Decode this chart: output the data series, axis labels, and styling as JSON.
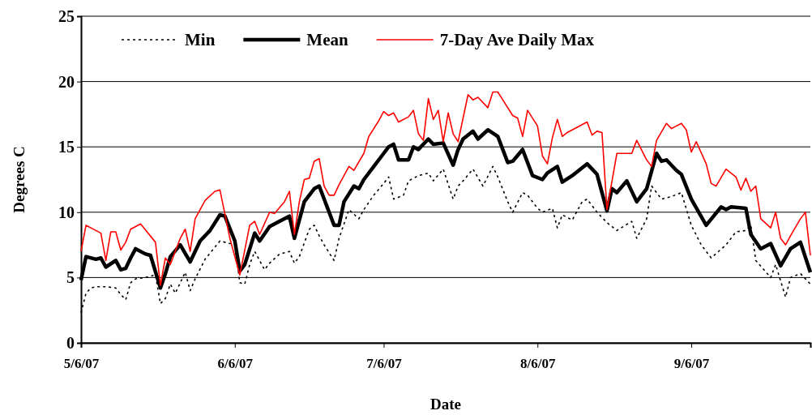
{
  "chart_data": {
    "type": "line",
    "xlabel": "Date",
    "ylabel": "Degrees C",
    "xlim": [
      "2007-05-06",
      "2007-09-30"
    ],
    "xticks": [
      {
        "value": "2007-05-06",
        "label": "5/6/07"
      },
      {
        "value": "2007-06-06",
        "label": "6/6/07"
      },
      {
        "value": "2007-07-06",
        "label": "7/6/07"
      },
      {
        "value": "2007-08-06",
        "label": "8/6/07"
      },
      {
        "value": "2007-09-06",
        "label": "9/6/07"
      }
    ],
    "ylim": [
      0,
      25
    ],
    "yticks": [
      0,
      5,
      10,
      15,
      20,
      25
    ],
    "grid": "y",
    "legend": "top",
    "marker": "none",
    "series": [
      {
        "name": "Min",
        "color": "#000000",
        "line_style": "dotted",
        "x": [
          "2007-05-06",
          "2007-05-07",
          "2007-05-08",
          "2007-05-09",
          "2007-05-11",
          "2007-05-13",
          "2007-05-14",
          "2007-05-15",
          "2007-05-16",
          "2007-05-17",
          "2007-05-19",
          "2007-05-21",
          "2007-05-22",
          "2007-05-23",
          "2007-05-24",
          "2007-05-25",
          "2007-05-27",
          "2007-05-28",
          "2007-05-29",
          "2007-05-31",
          "2007-06-03",
          "2007-06-05",
          "2007-06-06",
          "2007-06-07",
          "2007-06-08",
          "2007-06-09",
          "2007-06-10",
          "2007-06-12",
          "2007-06-13",
          "2007-06-15",
          "2007-06-17",
          "2007-06-18",
          "2007-06-19",
          "2007-06-21",
          "2007-06-22",
          "2007-06-23",
          "2007-06-24",
          "2007-06-26",
          "2007-06-27",
          "2007-06-29",
          "2007-07-01",
          "2007-07-02",
          "2007-07-04",
          "2007-07-06",
          "2007-07-07",
          "2007-07-08",
          "2007-07-10",
          "2007-07-11",
          "2007-07-13",
          "2007-07-15",
          "2007-07-16",
          "2007-07-18",
          "2007-07-20",
          "2007-07-21",
          "2007-07-22",
          "2007-07-24",
          "2007-07-26",
          "2007-07-28",
          "2007-07-29",
          "2007-07-31",
          "2007-08-01",
          "2007-08-03",
          "2007-08-04",
          "2007-08-06",
          "2007-08-07",
          "2007-08-09",
          "2007-08-10",
          "2007-08-11",
          "2007-08-13",
          "2007-08-15",
          "2007-08-16",
          "2007-08-18",
          "2007-08-20",
          "2007-08-22",
          "2007-08-25",
          "2007-08-26",
          "2007-08-28",
          "2007-08-29",
          "2007-08-31",
          "2007-09-02",
          "2007-09-04",
          "2007-09-06",
          "2007-09-08",
          "2007-09-10",
          "2007-09-13",
          "2007-09-15",
          "2007-09-17",
          "2007-09-18",
          "2007-09-19",
          "2007-09-22",
          "2007-09-23",
          "2007-09-25",
          "2007-09-26",
          "2007-09-28",
          "2007-09-30"
        ],
        "values": [
          2.3,
          3.8,
          4.2,
          4.3,
          4.3,
          4.2,
          3.7,
          3.3,
          4.6,
          4.9,
          5.0,
          5.2,
          3.0,
          3.4,
          4.5,
          3.8,
          5.4,
          4.0,
          4.9,
          6.4,
          7.8,
          7.6,
          7.6,
          4.6,
          4.5,
          6.0,
          7.0,
          5.6,
          6.1,
          6.8,
          7.0,
          6.1,
          6.6,
          8.7,
          9.0,
          8.2,
          7.5,
          6.3,
          8.0,
          10.2,
          9.5,
          10.2,
          11.3,
          12.2,
          12.7,
          11.0,
          11.3,
          12.4,
          12.8,
          13.0,
          12.4,
          13.3,
          11.0,
          12.0,
          12.4,
          13.3,
          12.0,
          13.5,
          12.7,
          10.8,
          10.0,
          11.5,
          11.3,
          10.3,
          10.0,
          10.3,
          8.8,
          9.8,
          9.4,
          10.8,
          11.0,
          10.0,
          9.2,
          8.6,
          9.3,
          8.0,
          9.5,
          12.0,
          11.0,
          11.2,
          11.5,
          9.0,
          7.5,
          6.5,
          7.5,
          8.5,
          8.6,
          9.0,
          6.3,
          5.0,
          6.0,
          3.5,
          5.0,
          5.3,
          4.5
        ]
      },
      {
        "name": "Mean",
        "color": "#000000",
        "line_style": "solid",
        "x": [
          "2007-05-06",
          "2007-05-07",
          "2007-05-09",
          "2007-05-10",
          "2007-05-11",
          "2007-05-13",
          "2007-05-14",
          "2007-05-15",
          "2007-05-16",
          "2007-05-17",
          "2007-05-19",
          "2007-05-20",
          "2007-05-22",
          "2007-05-23",
          "2007-05-24",
          "2007-05-26",
          "2007-05-28",
          "2007-05-30",
          "2007-06-01",
          "2007-06-03",
          "2007-06-04",
          "2007-06-06",
          "2007-06-07",
          "2007-06-08",
          "2007-06-10",
          "2007-06-11",
          "2007-06-13",
          "2007-06-15",
          "2007-06-17",
          "2007-06-18",
          "2007-06-20",
          "2007-06-22",
          "2007-06-23",
          "2007-06-25",
          "2007-06-26",
          "2007-06-27",
          "2007-06-28",
          "2007-06-30",
          "2007-07-01",
          "2007-07-02",
          "2007-07-04",
          "2007-07-06",
          "2007-07-07",
          "2007-07-08",
          "2007-07-09",
          "2007-07-11",
          "2007-07-12",
          "2007-07-13",
          "2007-07-15",
          "2007-07-16",
          "2007-07-18",
          "2007-07-20",
          "2007-07-21",
          "2007-07-22",
          "2007-07-24",
          "2007-07-25",
          "2007-07-27",
          "2007-07-29",
          "2007-07-31",
          "2007-08-01",
          "2007-08-03",
          "2007-08-05",
          "2007-08-07",
          "2007-08-08",
          "2007-08-10",
          "2007-08-11",
          "2007-08-13",
          "2007-08-15",
          "2007-08-16",
          "2007-08-18",
          "2007-08-20",
          "2007-08-21",
          "2007-08-22",
          "2007-08-24",
          "2007-08-26",
          "2007-08-28",
          "2007-08-30",
          "2007-08-31",
          "2007-09-01",
          "2007-09-03",
          "2007-09-04",
          "2007-09-06",
          "2007-09-09",
          "2007-09-12",
          "2007-09-13",
          "2007-09-14",
          "2007-09-17",
          "2007-09-18",
          "2007-09-20",
          "2007-09-22",
          "2007-09-24",
          "2007-09-26",
          "2007-09-28",
          "2007-09-30"
        ],
        "values": [
          4.8,
          6.6,
          6.4,
          6.5,
          5.8,
          6.3,
          5.6,
          5.7,
          6.5,
          7.2,
          6.8,
          6.7,
          4.2,
          5.3,
          6.6,
          7.5,
          6.2,
          7.8,
          8.6,
          9.8,
          9.7,
          7.8,
          5.5,
          6.0,
          8.4,
          7.8,
          8.9,
          9.3,
          9.7,
          8.0,
          10.8,
          11.8,
          12.0,
          10.0,
          9.0,
          9.0,
          10.8,
          12.0,
          11.8,
          12.5,
          13.5,
          14.5,
          15.0,
          15.2,
          14.0,
          14.0,
          15.0,
          14.8,
          15.6,
          15.2,
          15.3,
          13.6,
          14.8,
          15.6,
          16.2,
          15.6,
          16.3,
          15.8,
          13.8,
          13.9,
          14.8,
          12.8,
          12.5,
          13.0,
          13.5,
          12.3,
          12.8,
          13.4,
          13.7,
          12.9,
          10.1,
          11.8,
          11.5,
          12.4,
          10.8,
          11.8,
          14.5,
          13.9,
          14.0,
          13.2,
          12.9,
          11.0,
          9.0,
          10.4,
          10.2,
          10.4,
          10.3,
          8.3,
          7.2,
          7.6,
          5.9,
          7.2,
          7.7,
          5.4
        ]
      },
      {
        "name": "7-Day Ave Daily Max",
        "color": "#ff0000",
        "line_style": "solid",
        "x": [
          "2007-05-06",
          "2007-05-07",
          "2007-05-09",
          "2007-05-10",
          "2007-05-11",
          "2007-05-12",
          "2007-05-13",
          "2007-05-14",
          "2007-05-15",
          "2007-05-16",
          "2007-05-17",
          "2007-05-18",
          "2007-05-21",
          "2007-05-22",
          "2007-05-23",
          "2007-05-24",
          "2007-05-26",
          "2007-05-27",
          "2007-05-28",
          "2007-05-29",
          "2007-05-31",
          "2007-06-02",
          "2007-06-03",
          "2007-06-05",
          "2007-06-07",
          "2007-06-09",
          "2007-06-10",
          "2007-06-11",
          "2007-06-13",
          "2007-06-14",
          "2007-06-16",
          "2007-06-17",
          "2007-06-18",
          "2007-06-19",
          "2007-06-20",
          "2007-06-21",
          "2007-06-22",
          "2007-06-23",
          "2007-06-24",
          "2007-06-25",
          "2007-06-26",
          "2007-06-27",
          "2007-06-29",
          "2007-06-30",
          "2007-07-02",
          "2007-07-03",
          "2007-07-05",
          "2007-07-06",
          "2007-07-07",
          "2007-07-08",
          "2007-07-09",
          "2007-07-11",
          "2007-07-12",
          "2007-07-13",
          "2007-07-14",
          "2007-07-15",
          "2007-07-16",
          "2007-07-17",
          "2007-07-18",
          "2007-07-19",
          "2007-07-20",
          "2007-07-21",
          "2007-07-23",
          "2007-07-24",
          "2007-07-25",
          "2007-07-27",
          "2007-07-28",
          "2007-07-29",
          "2007-07-30",
          "2007-08-01",
          "2007-08-02",
          "2007-08-03",
          "2007-08-04",
          "2007-08-06",
          "2007-08-07",
          "2007-08-08",
          "2007-08-09",
          "2007-08-10",
          "2007-08-11",
          "2007-08-12",
          "2007-08-14",
          "2007-08-16",
          "2007-08-17",
          "2007-08-18",
          "2007-08-19",
          "2007-08-20",
          "2007-08-22",
          "2007-08-25",
          "2007-08-26",
          "2007-08-28",
          "2007-08-29",
          "2007-08-30",
          "2007-09-01",
          "2007-09-02",
          "2007-09-04",
          "2007-09-05",
          "2007-09-06",
          "2007-09-07",
          "2007-09-09",
          "2007-09-10",
          "2007-09-11",
          "2007-09-13",
          "2007-09-15",
          "2007-09-16",
          "2007-09-17",
          "2007-09-18",
          "2007-09-19",
          "2007-09-20",
          "2007-09-22",
          "2007-09-23",
          "2007-09-24",
          "2007-09-25",
          "2007-09-26",
          "2007-09-28",
          "2007-09-29",
          "2007-09-30"
        ],
        "values": [
          7.0,
          9.0,
          8.6,
          8.4,
          6.3,
          8.5,
          8.5,
          7.1,
          7.7,
          8.7,
          8.9,
          9.1,
          7.7,
          4.4,
          6.5,
          6.0,
          8.0,
          8.7,
          7.0,
          9.5,
          10.9,
          11.6,
          11.7,
          8.0,
          5.2,
          9.0,
          9.3,
          8.3,
          10.0,
          9.9,
          10.8,
          11.6,
          8.3,
          10.8,
          12.5,
          12.6,
          13.9,
          14.1,
          12.0,
          11.3,
          11.3,
          12.1,
          13.5,
          13.2,
          14.5,
          15.8,
          17.0,
          17.7,
          17.4,
          17.6,
          16.9,
          17.3,
          17.8,
          16.0,
          15.5,
          18.7,
          17.1,
          17.8,
          15.4,
          17.6,
          16.0,
          15.4,
          19.0,
          18.6,
          18.8,
          18.0,
          19.2,
          19.2,
          18.6,
          17.4,
          17.2,
          15.8,
          17.8,
          16.6,
          14.3,
          13.7,
          15.7,
          17.1,
          15.8,
          16.1,
          16.5,
          16.9,
          15.9,
          16.2,
          16.1,
          10.2,
          14.5,
          14.5,
          15.5,
          14.0,
          13.5,
          15.5,
          16.8,
          16.4,
          16.8,
          16.3,
          14.6,
          15.4,
          13.7,
          12.2,
          12.0,
          13.3,
          12.7,
          11.7,
          12.6,
          11.6,
          12.0,
          9.5,
          8.8,
          10.0,
          8.0,
          7.5,
          8.2,
          9.5,
          10.0,
          6.7
        ]
      }
    ]
  }
}
